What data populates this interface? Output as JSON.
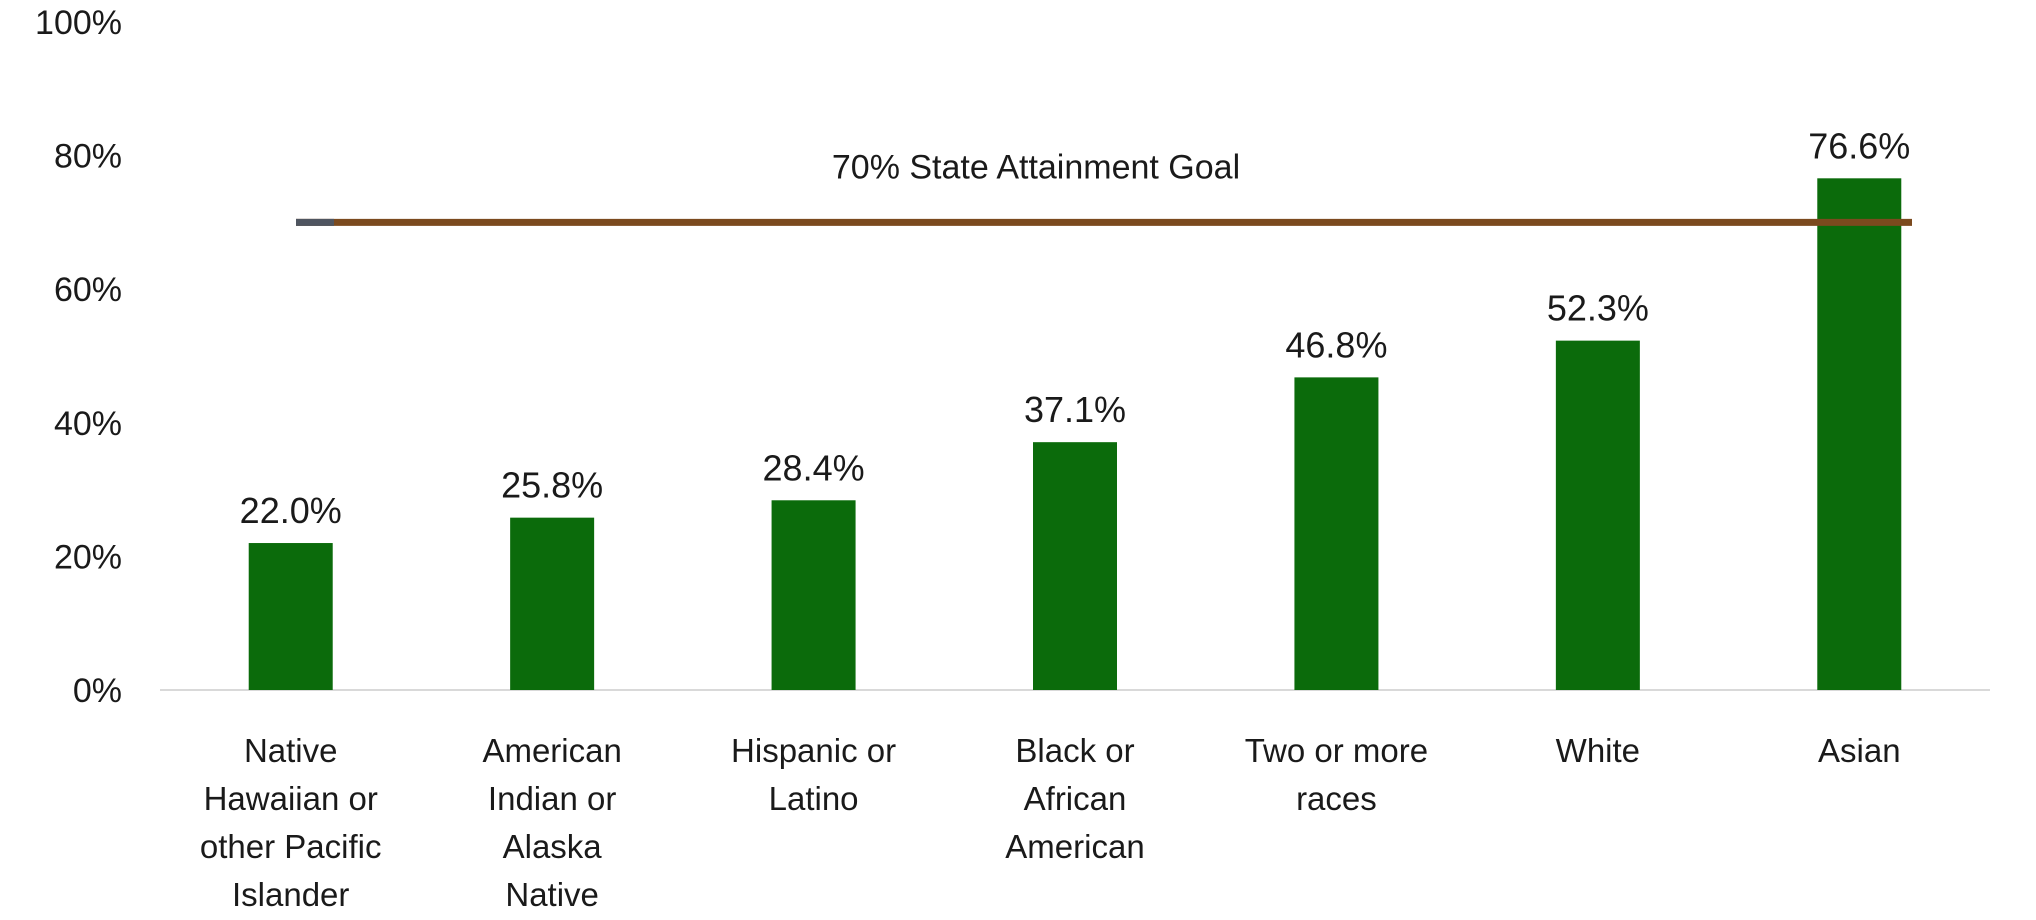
{
  "chart_data": {
    "type": "bar",
    "categories": [
      [
        "Native",
        "Hawaiian or",
        "other Pacific",
        "Islander"
      ],
      [
        "American",
        "Indian or",
        "Alaska",
        "Native"
      ],
      [
        "Hispanic or",
        "Latino"
      ],
      [
        "Black or",
        "African",
        "American"
      ],
      [
        "Two or more",
        "races"
      ],
      [
        "White"
      ],
      [
        "Asian"
      ]
    ],
    "values": [
      22.0,
      25.8,
      28.4,
      37.1,
      46.8,
      52.3,
      76.6
    ],
    "data_labels": [
      "22.0%",
      "25.8%",
      "28.4%",
      "37.1%",
      "46.8%",
      "52.3%",
      "76.6%"
    ],
    "ylim": [
      0,
      100
    ],
    "yticks": [
      0,
      20,
      40,
      60,
      80,
      100
    ],
    "ytick_labels": [
      "0%",
      "20%",
      "40%",
      "60%",
      "80%",
      "100%"
    ],
    "title": "",
    "xlabel": "",
    "ylabel": "",
    "grid": false,
    "reference_line": {
      "value": 70,
      "label": "70% State Attainment Goal",
      "color": "#7b4a1e"
    },
    "colors": {
      "bar": "#0b6b0b",
      "text": "#1a1a1a",
      "axis": "#d9d9d9"
    }
  }
}
